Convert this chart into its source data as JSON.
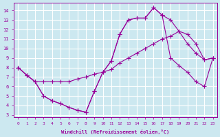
{
  "xlabel": "Windchill (Refroidissement éolien,°C)",
  "bg_color": "#cce8f0",
  "grid_color": "#ffffff",
  "line_color": "#990099",
  "xlim": [
    -0.5,
    23.5
  ],
  "ylim": [
    2.8,
    14.8
  ],
  "yticks": [
    3,
    4,
    5,
    6,
    7,
    8,
    9,
    10,
    11,
    12,
    13,
    14
  ],
  "xticks": [
    0,
    1,
    2,
    3,
    4,
    5,
    6,
    7,
    8,
    9,
    10,
    11,
    12,
    13,
    14,
    15,
    16,
    17,
    18,
    19,
    20,
    21,
    22,
    23
  ],
  "curve1_x": [
    0,
    1,
    2,
    3,
    4,
    5,
    6,
    7,
    8,
    9,
    10,
    11,
    12,
    13,
    14,
    15,
    16,
    17,
    18,
    19,
    20,
    21,
    22,
    23
  ],
  "curve1_y": [
    8.0,
    7.2,
    6.5,
    5.0,
    4.5,
    4.2,
    3.8,
    3.5,
    3.3,
    5.5,
    7.5,
    8.7,
    11.5,
    13.0,
    13.2,
    13.2,
    14.3,
    13.5,
    13.0,
    11.8,
    10.5,
    9.5,
    8.8,
    9.0
  ],
  "curve2_x": [
    0,
    1,
    2,
    3,
    4,
    5,
    6,
    7,
    8,
    9,
    10,
    11,
    12,
    13,
    14,
    15,
    16,
    17,
    18,
    19,
    20,
    21,
    22,
    23
  ],
  "curve2_y": [
    8.0,
    7.2,
    6.5,
    6.5,
    6.5,
    6.5,
    6.5,
    6.8,
    7.0,
    7.3,
    7.5,
    7.8,
    8.5,
    9.0,
    9.5,
    10.0,
    10.5,
    11.0,
    11.3,
    11.8,
    11.5,
    10.5,
    8.8,
    9.0
  ],
  "curve3_x": [
    0,
    1,
    2,
    3,
    4,
    5,
    6,
    7,
    8,
    9,
    10,
    11,
    12,
    13,
    14,
    15,
    16,
    17,
    18,
    19,
    20,
    21,
    22,
    23
  ],
  "curve3_y": [
    8.0,
    7.2,
    6.5,
    5.0,
    4.5,
    4.2,
    3.8,
    3.5,
    3.3,
    5.5,
    7.5,
    8.7,
    11.5,
    13.0,
    13.2,
    13.2,
    14.3,
    13.5,
    9.0,
    8.2,
    7.5,
    6.5,
    6.0,
    9.0
  ]
}
